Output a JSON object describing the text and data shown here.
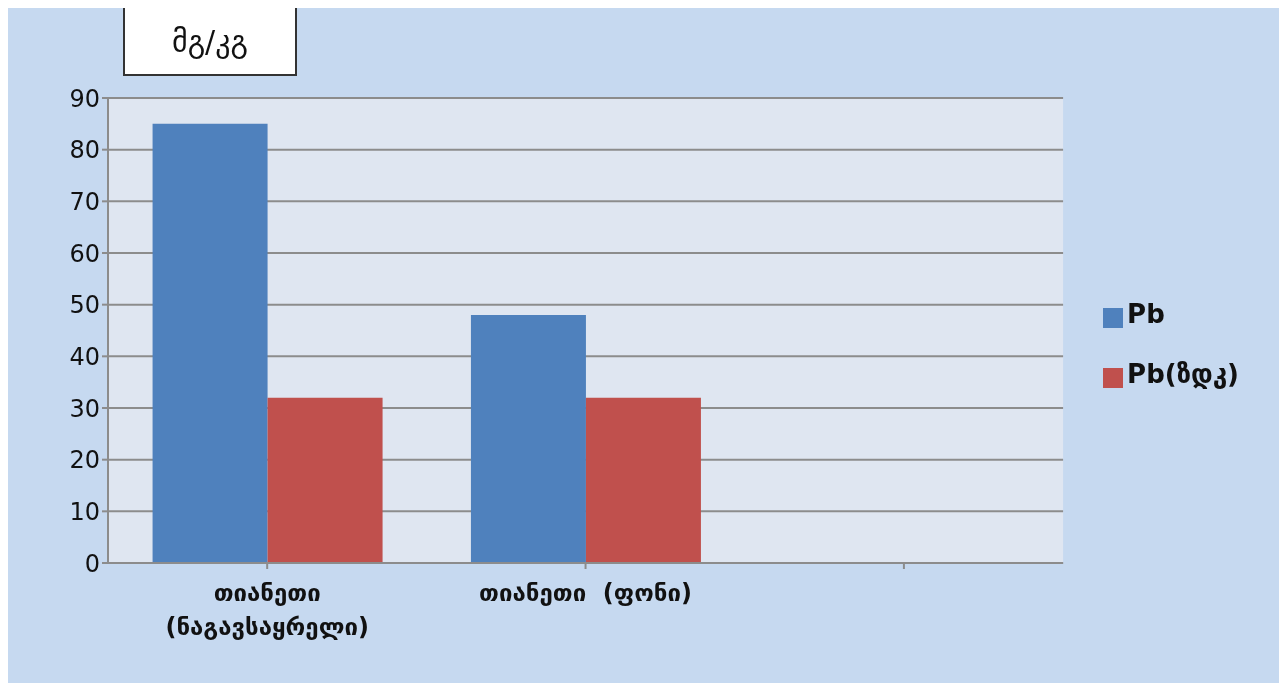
{
  "chart_data": {
    "type": "bar",
    "ylabel": "მგ/კგ",
    "categories": [
      "თიანეთი (ნაგავსაყრელი)",
      "თიანეთი  (ფონი)",
      null
    ],
    "series": [
      {
        "name": "Pb",
        "color": "#4f81bd",
        "values": [
          85,
          48,
          null
        ]
      },
      {
        "name": "Pb(ზდკ)",
        "color": "#c0504d",
        "values": [
          32,
          32,
          null
        ]
      }
    ],
    "ylim": [
      0,
      90
    ],
    "yticks": [
      0,
      10,
      20,
      30,
      40,
      50,
      60,
      70,
      80,
      90
    ],
    "grid": "y",
    "legend": "right"
  }
}
